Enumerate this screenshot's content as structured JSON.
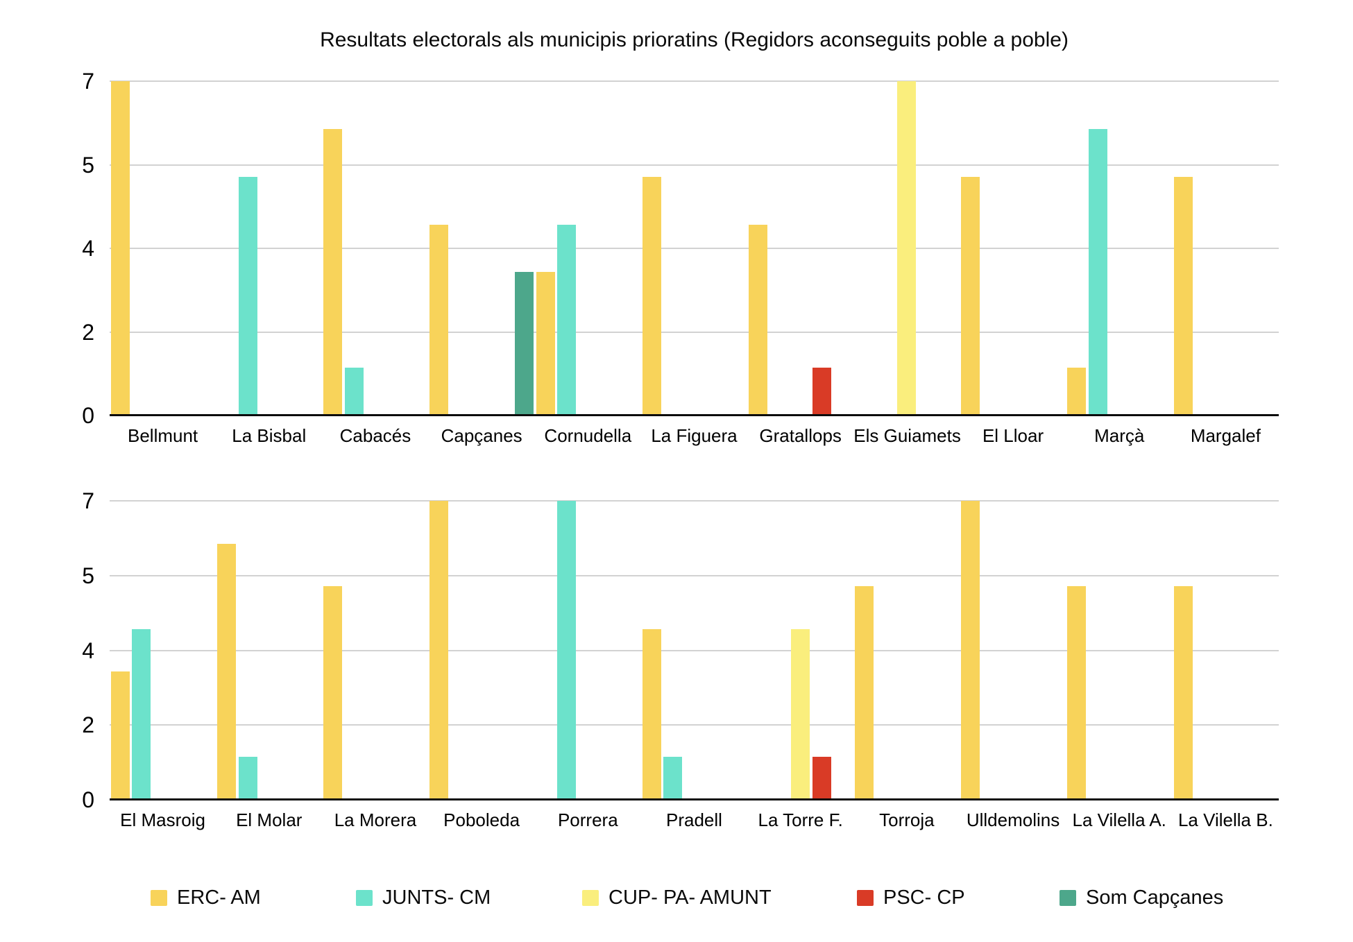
{
  "chart_data": {
    "type": "bar",
    "title": "Resultats electorals als municipis prioratins (Regidors aconseguits poble a poble)",
    "xlabel": "",
    "ylabel": "",
    "grid": true,
    "legend_position": "bottom",
    "axis": {
      "tick_labels_top_to_bottom": [
        "7",
        "5",
        "4",
        "2",
        "0"
      ],
      "value_min": 0,
      "value_max": 7,
      "note": "gridlines evenly spaced; linear 0-7 axis with rounded tick labels (0, 1.75, 3.5, 5.25, 7 shown as 0, 2, 4, 5, 7)"
    },
    "series": [
      {
        "name": "ERC- AM",
        "color": "#F8D35A"
      },
      {
        "name": "JUNTS- CM",
        "color": "#6CE2CB"
      },
      {
        "name": "CUP- PA- AMUNT",
        "color": "#FAEE7D"
      },
      {
        "name": "PSC- CP",
        "color": "#D93B26"
      },
      {
        "name": "Som Capçanes",
        "color": "#4DA78B"
      }
    ],
    "panels": [
      {
        "categories": [
          "Bellmunt",
          "La Bisbal",
          "Cabacés",
          "Capçanes",
          "Cornudella",
          "La Figuera",
          "Gratallops",
          "Els Guiamets",
          "El Lloar",
          "Marçà",
          "Margalef"
        ],
        "values_by_series": [
          [
            7,
            0,
            6,
            4,
            3,
            5,
            4,
            0,
            5,
            1,
            5
          ],
          [
            0,
            5,
            1,
            0,
            4,
            0,
            0,
            0,
            0,
            6,
            0
          ],
          [
            0,
            0,
            0,
            0,
            0,
            0,
            0,
            7,
            0,
            0,
            0
          ],
          [
            0,
            0,
            0,
            0,
            0,
            0,
            1,
            0,
            0,
            0,
            0
          ],
          [
            0,
            0,
            0,
            3,
            0,
            0,
            0,
            0,
            0,
            0,
            0
          ]
        ]
      },
      {
        "categories": [
          "El Masroig",
          "El Molar",
          "La Morera",
          "Poboleda",
          "Porrera",
          "Pradell",
          "La Torre F.",
          "Torroja",
          "Ulldemolins",
          "La Vilella A.",
          "La Vilella B."
        ],
        "values_by_series": [
          [
            3,
            6,
            5,
            7,
            0,
            4,
            0,
            5,
            7,
            5,
            5
          ],
          [
            4,
            1,
            0,
            0,
            7,
            1,
            0,
            0,
            0,
            0,
            0
          ],
          [
            0,
            0,
            0,
            0,
            0,
            0,
            4,
            0,
            0,
            0,
            0
          ],
          [
            0,
            0,
            0,
            0,
            0,
            0,
            1,
            0,
            0,
            0,
            0
          ],
          [
            0,
            0,
            0,
            0,
            0,
            0,
            0,
            0,
            0,
            0,
            0
          ]
        ]
      }
    ],
    "style_colors": {
      "gridline": "#d2d2d2",
      "axis_line": "#0c0c0c",
      "text": "#000000",
      "background": "#ffffff"
    }
  }
}
